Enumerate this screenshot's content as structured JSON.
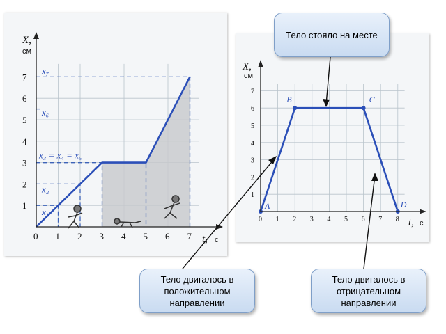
{
  "left_chart": {
    "y_axis_label": "X,",
    "y_unit": "см",
    "x_axis_label": "t,",
    "x_unit": "с",
    "x_ticks": [
      "0",
      "1",
      "2",
      "3",
      "4",
      "5",
      "6",
      "7"
    ],
    "y_ticks": [
      "1",
      "2",
      "3",
      "4",
      "5",
      "6",
      "7"
    ],
    "xlim": [
      0,
      7.5
    ],
    "ylim": [
      0,
      7.8
    ],
    "series": [
      {
        "x": [
          0,
          3,
          5,
          7
        ],
        "y": [
          0,
          3,
          3,
          7
        ]
      }
    ],
    "labels": {
      "x1": "x₁",
      "x2": "x₂",
      "x3_eq": "x₃ = x₄ = x₅",
      "x6": "x₆",
      "x7": "x₇"
    }
  },
  "right_chart": {
    "y_axis_label": "X,",
    "y_unit": "см",
    "x_axis_label": "t,",
    "x_unit": "с",
    "x_ticks": [
      "0",
      "1",
      "2",
      "3",
      "4",
      "5",
      "6",
      "7",
      "8"
    ],
    "y_ticks": [
      "1",
      "2",
      "3",
      "4",
      "5",
      "6",
      "7"
    ],
    "xlim": [
      0,
      8.6
    ],
    "ylim": [
      0,
      7.6
    ],
    "points": [
      {
        "name": "A",
        "x": 0,
        "y": 0
      },
      {
        "name": "B",
        "x": 2,
        "y": 6
      },
      {
        "name": "C",
        "x": 6,
        "y": 6
      },
      {
        "name": "D",
        "x": 8,
        "y": 0
      }
    ]
  },
  "callouts": {
    "stood": "Тело стояло на месте",
    "positive": "Тело двигалось в положительном направлении",
    "negative": "Тело двигалось в отрицательном направлении"
  },
  "colors": {
    "line": "#2b4fb8",
    "callout_fill": "#c9dbf1",
    "shade": "#c7c9cc"
  }
}
